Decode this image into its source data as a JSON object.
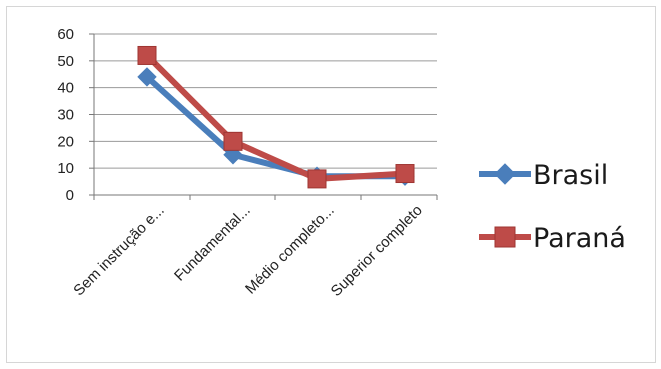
{
  "chart_data": {
    "type": "line",
    "title": "",
    "xlabel": "",
    "ylabel": "",
    "categories": [
      "Sem instrução e...",
      "Fundamental...",
      "Médio completo...",
      "Superior completo"
    ],
    "ylim": [
      0,
      60
    ],
    "yticks": [
      0,
      10,
      20,
      30,
      40,
      50,
      60
    ],
    "grid": true,
    "legend": "right",
    "series": [
      {
        "name": "Brasil",
        "values": [
          44,
          15,
          7,
          7
        ],
        "color": "#4a7ebb",
        "marker": "diamond"
      },
      {
        "name": "Paraná",
        "values": [
          52,
          20,
          6,
          8
        ],
        "color": "#be4b48",
        "marker": "square"
      }
    ]
  }
}
